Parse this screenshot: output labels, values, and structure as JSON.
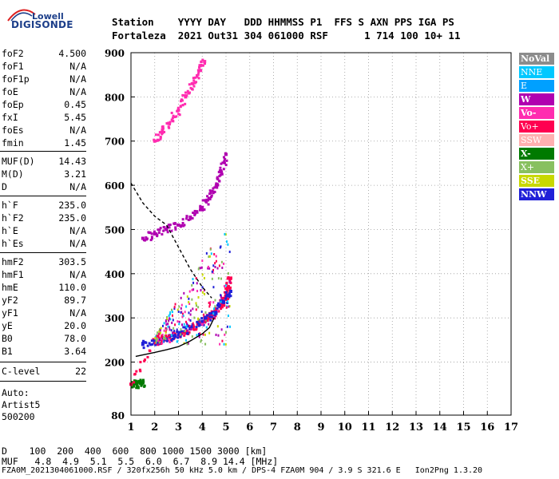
{
  "logo": {
    "top": "Lowell",
    "main": "DIGISONDE"
  },
  "header": {
    "line1": "Station    YYYY DAY   DDD HHMMSS P1  FFS S AXN PPS IGA PS",
    "line2": "Fortaleza  2021 Out31 304 061000 RSF      1 714 100 10+ 11"
  },
  "params": [
    {
      "k": "foF2",
      "v": "4.500"
    },
    {
      "k": "foF1",
      "v": "N/A"
    },
    {
      "k": "foF1p",
      "v": "N/A"
    },
    {
      "k": "foE",
      "v": "N/A"
    },
    {
      "k": "foEp",
      "v": "0.45"
    },
    {
      "k": "fxI",
      "v": "5.45"
    },
    {
      "k": "foEs",
      "v": "N/A"
    },
    {
      "k": "fmin",
      "v": "1.45"
    },
    {
      "k": "MUF(D)",
      "v": "14.43"
    },
    {
      "k": "M(D)",
      "v": "3.21"
    },
    {
      "k": "D",
      "v": "N/A"
    },
    {
      "k": "h`F",
      "v": "235.0"
    },
    {
      "k": "h`F2",
      "v": "235.0"
    },
    {
      "k": "h`E",
      "v": "N/A"
    },
    {
      "k": "h`Es",
      "v": "N/A"
    },
    {
      "k": "hmF2",
      "v": "303.5"
    },
    {
      "k": "hmF1",
      "v": "N/A"
    },
    {
      "k": "hmE",
      "v": "110.0"
    },
    {
      "k": "yF2",
      "v": "89.7"
    },
    {
      "k": "yF1",
      "v": "N/A"
    },
    {
      "k": "yE",
      "v": "20.0"
    },
    {
      "k": "B0",
      "v": "78.0"
    },
    {
      "k": "B1",
      "v": "3.64"
    },
    {
      "k": "C-level",
      "v": "22"
    }
  ],
  "auto": {
    "line1": "Auto:",
    "line2": "Artist5",
    "line3": "500200"
  },
  "legend": [
    {
      "label": "NoVal",
      "color": "#8c8c8c",
      "bold": true
    },
    {
      "label": "NNE",
      "color": "#00c8ff",
      "bold": false
    },
    {
      "label": "E",
      "color": "#00a0ff",
      "bold": false
    },
    {
      "label": "W",
      "color": "#b000b0",
      "bold": true
    },
    {
      "label": "Vo-",
      "color": "#ff2cb0",
      "bold": true
    },
    {
      "label": "Vo+",
      "color": "#ff0050",
      "bold": false
    },
    {
      "label": "SSW",
      "color": "#ffb0b0",
      "bold": false
    },
    {
      "label": "X-",
      "color": "#007a00",
      "bold": true
    },
    {
      "label": "X+",
      "color": "#88c060",
      "bold": false
    },
    {
      "label": "SSE",
      "color": "#c8d800",
      "bold": true
    },
    {
      "label": "NNW",
      "color": "#2020d8",
      "bold": true
    }
  ],
  "bottom": {
    "d_line": "D    100  200  400  600  800 1000 1500 3000 [km]",
    "muf_line": "MUF   4.8  4.9  5.1  5.5  6.0  6.7  8.9 14.4 [MHz]"
  },
  "footer": "FZA0M_2021304061000.RSF / 320fx256h 50 kHz 5.0 km / DPS-4 FZA0M 904 / 3.9 S 321.6 E   Ion2Png 1.3.20",
  "chart_data": {
    "type": "scatter",
    "title": "",
    "xlabel": "",
    "ylabel": "",
    "x_unit": "MHz",
    "y_unit": "km",
    "xlim": [
      1,
      17
    ],
    "ylim": [
      80,
      900
    ],
    "x_ticks": [
      1,
      2,
      3,
      4,
      5,
      6,
      7,
      8,
      9,
      10,
      11,
      12,
      13,
      14,
      15,
      16,
      17
    ],
    "y_ticks": [
      80,
      200,
      300,
      400,
      500,
      600,
      700,
      800,
      900
    ],
    "grid": true,
    "legend_position": "right",
    "traces": [
      {
        "name": "X-",
        "color": "#007a00",
        "points": [
          [
            1.1,
            150
          ],
          [
            1.25,
            150
          ],
          [
            1.4,
            152
          ],
          [
            1.5,
            153
          ]
        ]
      },
      {
        "name": "Vo+",
        "color": "#ff0050",
        "points": [
          [
            1.0,
            150
          ],
          [
            2.0,
            245
          ],
          [
            2.5,
            250
          ],
          [
            3.0,
            262
          ],
          [
            3.5,
            275
          ],
          [
            4.0,
            290
          ],
          [
            4.3,
            300
          ],
          [
            4.5,
            310
          ],
          [
            4.8,
            330
          ],
          [
            5.0,
            345
          ],
          [
            5.1,
            370
          ],
          [
            5.2,
            390
          ]
        ]
      },
      {
        "name": "NNW",
        "color": "#2020d8",
        "points": [
          [
            1.5,
            240
          ],
          [
            2.0,
            245
          ],
          [
            2.5,
            252
          ],
          [
            3.0,
            262
          ],
          [
            3.5,
            276
          ],
          [
            4.0,
            292
          ],
          [
            4.5,
            312
          ],
          [
            4.9,
            335
          ],
          [
            5.2,
            360
          ]
        ]
      },
      {
        "name": "W",
        "color": "#b000b0",
        "points": [
          [
            1.5,
            480
          ],
          [
            2.0,
            490
          ],
          [
            2.5,
            500
          ],
          [
            3.0,
            510
          ],
          [
            3.5,
            528
          ],
          [
            4.0,
            550
          ],
          [
            4.3,
            570
          ],
          [
            4.6,
            600
          ],
          [
            4.8,
            630
          ],
          [
            5.0,
            670
          ]
        ]
      },
      {
        "name": "Vo-",
        "color": "#ff2cb0",
        "points": [
          [
            2.0,
            700
          ],
          [
            2.3,
            720
          ],
          [
            2.6,
            740
          ],
          [
            3.0,
            770
          ],
          [
            3.3,
            800
          ],
          [
            3.6,
            830
          ],
          [
            3.9,
            860
          ],
          [
            4.1,
            880
          ]
        ]
      }
    ],
    "model_curves": [
      {
        "name": "profile",
        "color": "#000000",
        "dash": "none",
        "points": [
          [
            1.2,
            213
          ],
          [
            2.0,
            222
          ],
          [
            2.5,
            228
          ],
          [
            3.0,
            235
          ],
          [
            3.5,
            248
          ],
          [
            4.0,
            264
          ],
          [
            4.3,
            278
          ],
          [
            4.5,
            300
          ]
        ]
      },
      {
        "name": "dashed",
        "color": "#000000",
        "dash": "4,3",
        "points": [
          [
            1.0,
            605
          ],
          [
            1.5,
            560
          ],
          [
            2.0,
            530
          ],
          [
            2.5,
            510
          ],
          [
            3.0,
            460
          ],
          [
            3.5,
            410
          ],
          [
            4.0,
            370
          ],
          [
            4.4,
            345
          ]
        ]
      }
    ]
  }
}
